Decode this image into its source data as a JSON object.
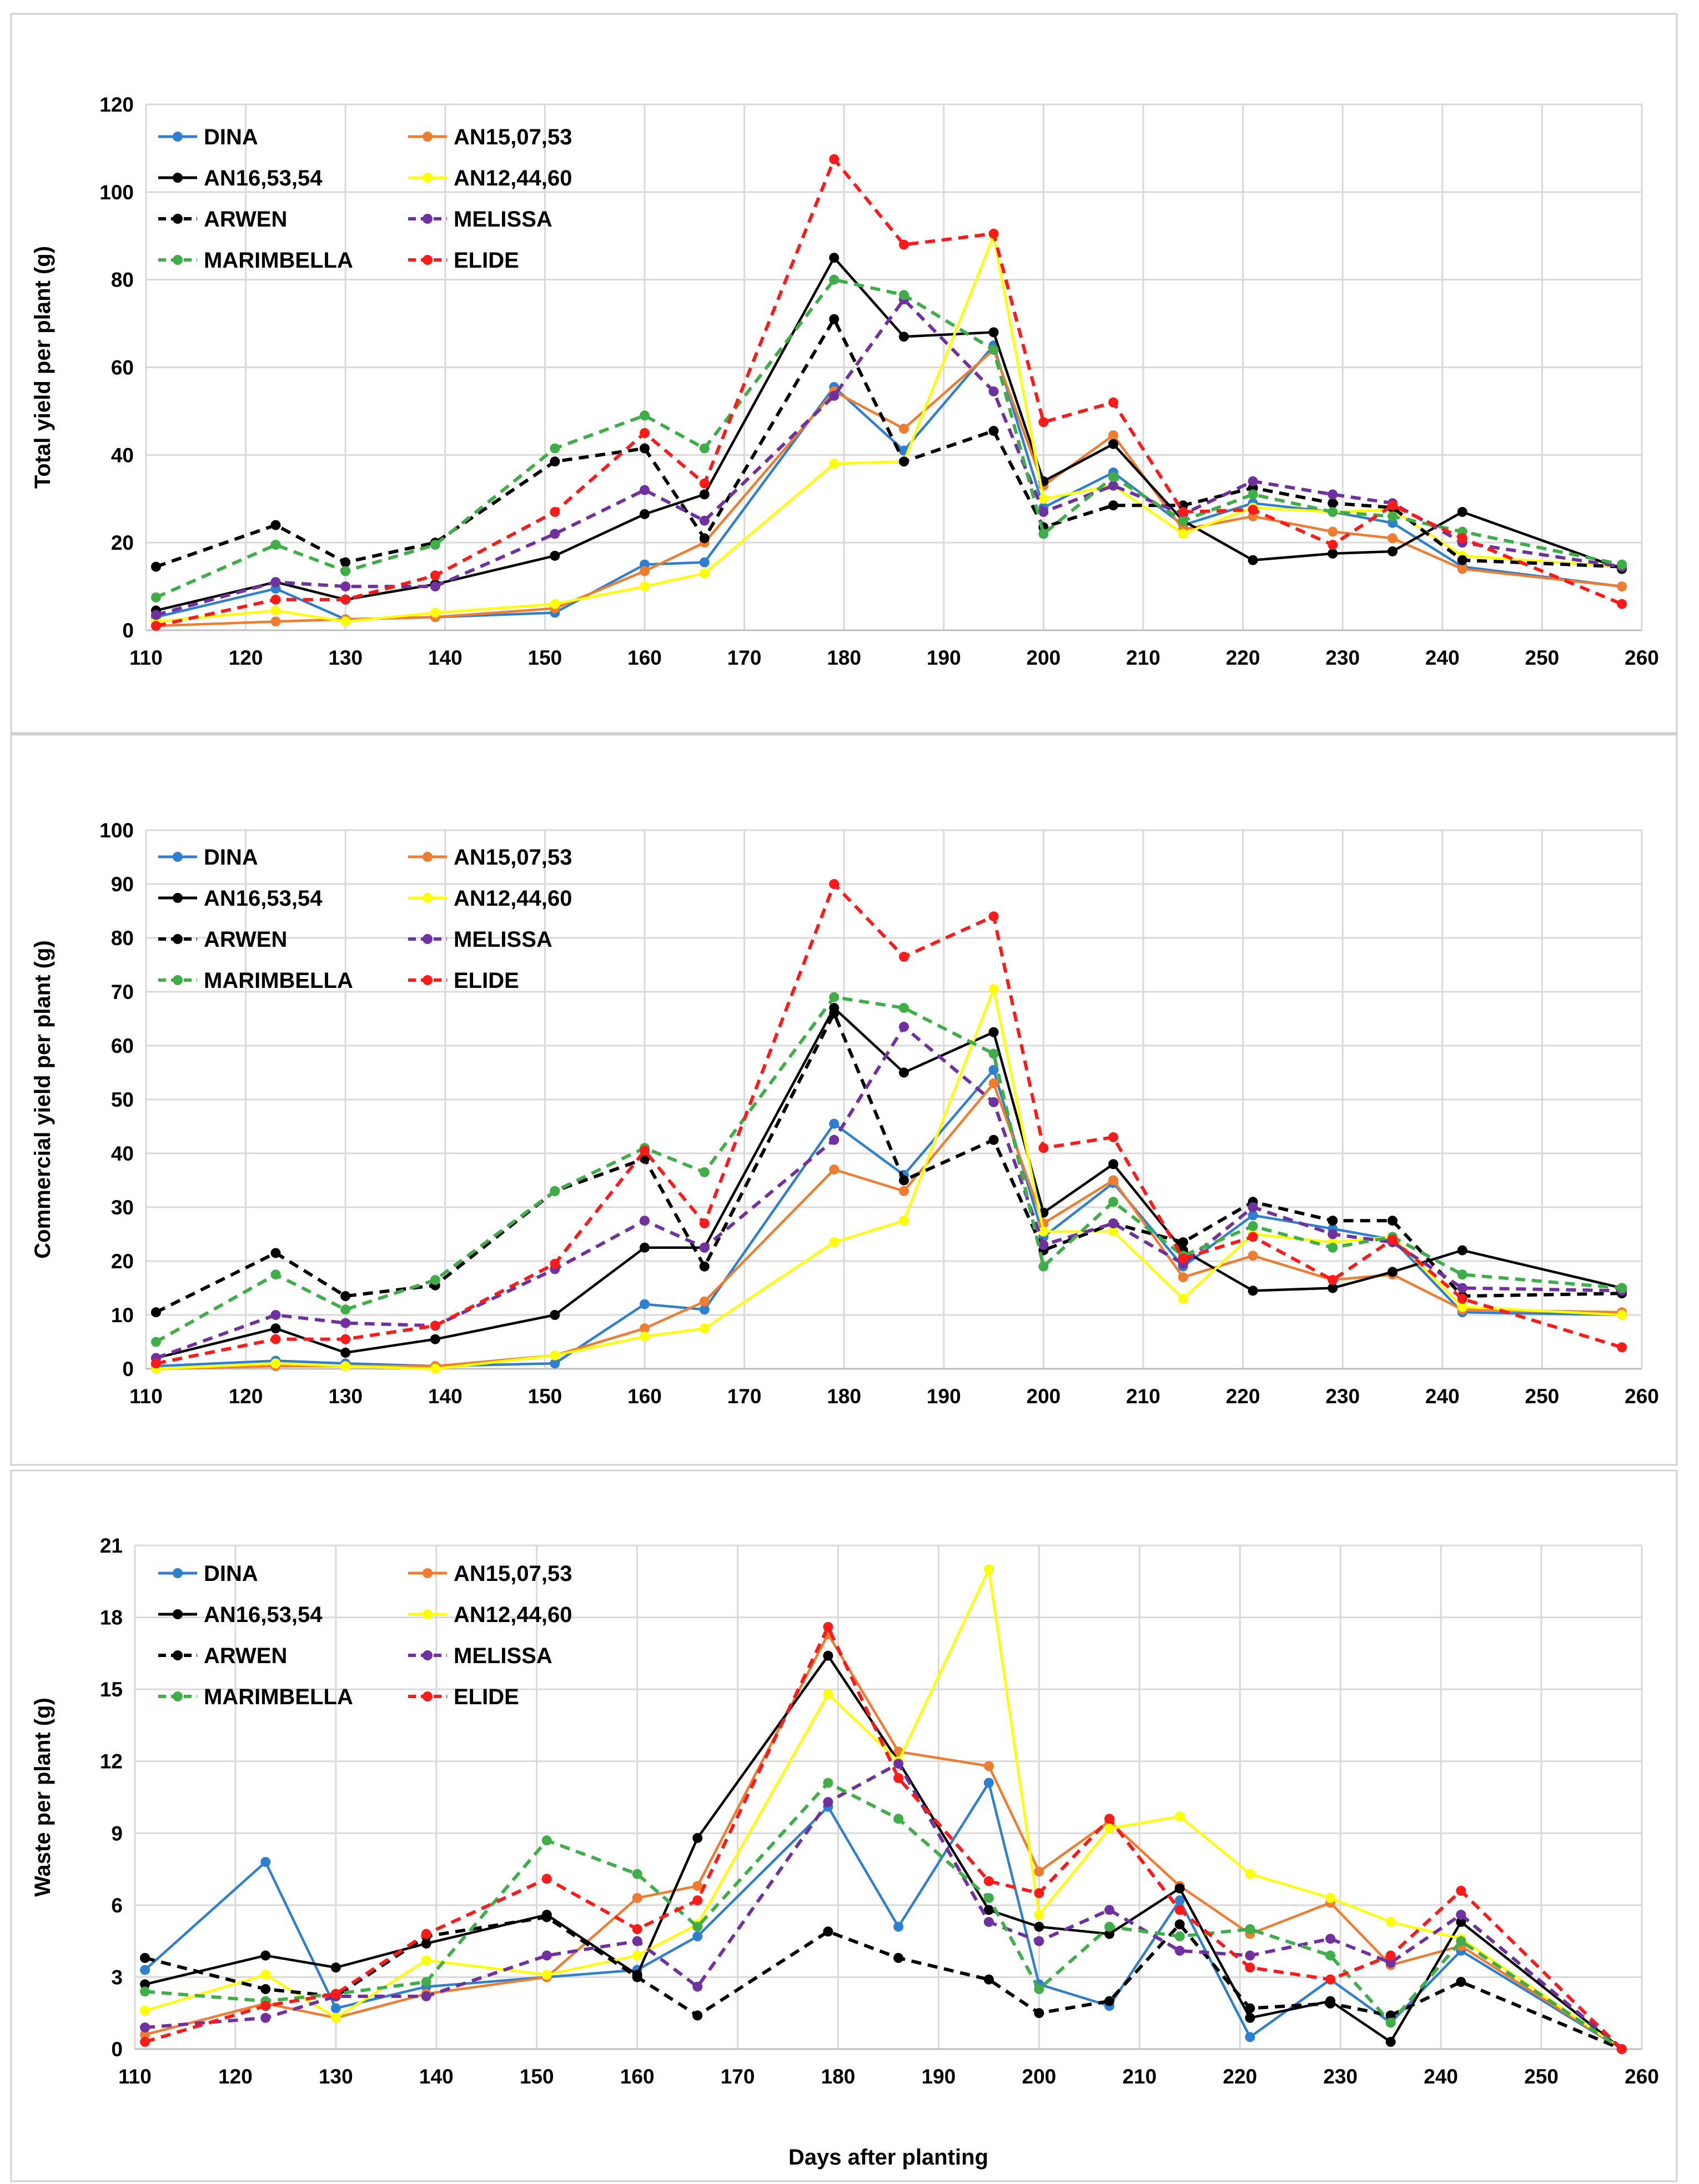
{
  "colors": {
    "DINA": "#2f7fd0",
    "AN15,07,53": "#f07c30",
    "AN16,53,54": "#000000",
    "AN12,44,60": "#ffff00",
    "ARWEN": "#000000",
    "MELISSA": "#7030a0",
    "MARIMBELLA": "#3fae49",
    "ELIDE": "#ff1a1a",
    "grid": "#d9d9d9"
  },
  "xlabel": "Days after planting",
  "chart_data": [
    {
      "type": "line",
      "title": "",
      "ylabel": "Total yield per plant (g)",
      "xlabel": "",
      "xlim": [
        110,
        260
      ],
      "ylim": [
        0,
        120
      ],
      "xticks": [
        110,
        120,
        130,
        140,
        150,
        160,
        170,
        180,
        190,
        200,
        210,
        220,
        230,
        240,
        250,
        260
      ],
      "yticks": [
        0,
        20,
        40,
        60,
        80,
        100,
        120
      ],
      "x": [
        111,
        123,
        130,
        139,
        151,
        160,
        166,
        179,
        186,
        195,
        200,
        207,
        214,
        221,
        229,
        235,
        242,
        258
      ],
      "series": [
        {
          "name": "DINA",
          "dashed": false,
          "values": [
            3,
            9.5,
            2.5,
            3,
            4,
            15,
            15.5,
            55.5,
            41,
            65,
            28,
            36,
            24,
            29,
            27,
            24.5,
            14.5,
            10
          ]
        },
        {
          "name": "AN15,07,53",
          "dashed": false,
          "values": [
            1,
            2,
            2.5,
            3,
            5,
            13.5,
            20,
            54.5,
            46,
            64,
            33,
            44.5,
            23,
            26,
            22.5,
            21,
            14,
            10
          ]
        },
        {
          "name": "AN16,53,54",
          "dashed": false,
          "values": [
            4.5,
            11,
            7,
            10.5,
            17,
            26.5,
            31,
            85,
            67,
            68,
            34,
            42.5,
            25,
            16,
            17.5,
            18,
            27,
            14
          ]
        },
        {
          "name": "AN12,44,60",
          "dashed": false,
          "values": [
            2,
            4.5,
            2,
            4,
            6,
            10,
            13,
            38,
            38.5,
            90,
            30,
            33,
            22,
            28,
            27,
            27.5,
            17,
            14.5
          ]
        },
        {
          "name": "ARWEN",
          "dashed": true,
          "values": [
            14.5,
            24,
            15.5,
            20,
            38.5,
            41.5,
            21,
            71,
            38.5,
            45.5,
            23.5,
            28.5,
            28.5,
            32.5,
            29,
            28,
            16,
            14.5
          ]
        },
        {
          "name": "MELISSA",
          "dashed": true,
          "values": [
            3.5,
            11,
            10,
            10,
            22,
            32,
            25,
            53.5,
            75.5,
            54.5,
            27,
            33,
            26.5,
            34,
            31,
            29,
            20,
            14.5
          ]
        },
        {
          "name": "MARIMBELLA",
          "dashed": true,
          "values": [
            7.5,
            19.5,
            13.5,
            19.5,
            41.5,
            49,
            41.5,
            80,
            76.5,
            64,
            22,
            35,
            25,
            31,
            27,
            26,
            22.5,
            15
          ]
        },
        {
          "name": "ELIDE",
          "dashed": true,
          "values": [
            1,
            7,
            7,
            12.5,
            27,
            45,
            33.5,
            107.5,
            88,
            90.5,
            47.5,
            52,
            27,
            27.5,
            19.5,
            28.5,
            21,
            6
          ]
        }
      ],
      "legend": [
        [
          "DINA",
          "AN15,07,53"
        ],
        [
          "AN16,53,54",
          "AN12,44,60"
        ],
        [
          "ARWEN",
          "MELISSA"
        ],
        [
          "MARIMBELLA",
          "ELIDE"
        ]
      ],
      "ytick_labels": [
        "0",
        "20",
        "40",
        "60",
        "80",
        "100",
        "120"
      ],
      "xtick_labels": [
        "110",
        "120",
        "130",
        "140",
        "150",
        "160",
        "170",
        "180",
        "190",
        "200",
        "210",
        "220",
        "230",
        "240",
        "250",
        "260"
      ]
    },
    {
      "type": "line",
      "title": "",
      "ylabel": "Commercial yield per plant (g)",
      "xlabel": "",
      "xlim": [
        110,
        260
      ],
      "ylim": [
        0,
        100
      ],
      "xticks": [
        110,
        120,
        130,
        140,
        150,
        160,
        170,
        180,
        190,
        200,
        210,
        220,
        230,
        240,
        250,
        260
      ],
      "yticks": [
        0,
        10,
        20,
        30,
        40,
        50,
        60,
        70,
        80,
        90,
        100
      ],
      "x": [
        111,
        123,
        130,
        139,
        151,
        160,
        166,
        179,
        186,
        195,
        200,
        207,
        214,
        221,
        229,
        235,
        242,
        258
      ],
      "series": [
        {
          "name": "DINA",
          "dashed": false,
          "values": [
            0.5,
            1.5,
            1,
            0.5,
            1,
            12,
            11,
            45.5,
            36,
            55.5,
            24.5,
            34.5,
            19,
            28.5,
            26,
            24,
            10.5,
            10
          ]
        },
        {
          "name": "AN15,07,53",
          "dashed": false,
          "values": [
            0,
            0.5,
            0.5,
            0.5,
            2.5,
            7.5,
            12.5,
            37,
            33,
            53,
            27,
            35,
            17,
            21,
            16.5,
            17.5,
            11,
            10.5
          ]
        },
        {
          "name": "AN16,53,54",
          "dashed": false,
          "values": [
            2,
            7.5,
            3,
            5.5,
            10,
            22.5,
            22.5,
            67,
            55,
            62.5,
            29,
            38,
            22,
            14.5,
            15,
            18,
            22,
            15
          ]
        },
        {
          "name": "AN12,44,60",
          "dashed": false,
          "values": [
            0,
            1,
            0.5,
            0,
            2.5,
            6,
            7.5,
            23.5,
            27.5,
            70.5,
            25.5,
            25.5,
            13,
            25,
            23.5,
            24.5,
            11.5,
            10
          ]
        },
        {
          "name": "ARWEN",
          "dashed": true,
          "values": [
            10.5,
            21.5,
            13.5,
            15.5,
            33,
            39,
            19,
            66,
            35,
            42.5,
            22,
            27,
            23.5,
            31,
            27.5,
            27.5,
            13.5,
            14
          ]
        },
        {
          "name": "MELISSA",
          "dashed": true,
          "values": [
            2,
            10,
            8.5,
            8,
            18.5,
            27.5,
            22.5,
            42.5,
            63.5,
            49.5,
            23,
            27,
            19.5,
            30,
            25,
            23.5,
            15,
            14.5
          ]
        },
        {
          "name": "MARIMBELLA",
          "dashed": true,
          "values": [
            5,
            17.5,
            11,
            16.5,
            33,
            41,
            36.5,
            69,
            67,
            58.5,
            19,
            31,
            21,
            26.5,
            22.5,
            24.5,
            17.5,
            15
          ]
        },
        {
          "name": "ELIDE",
          "dashed": true,
          "values": [
            1,
            5.5,
            5.5,
            8,
            19.5,
            40.5,
            27,
            90,
            76.5,
            84,
            41,
            43,
            20.5,
            24.5,
            16.5,
            24,
            13,
            4
          ]
        }
      ],
      "legend": [
        [
          "DINA",
          "AN15,07,53"
        ],
        [
          "AN16,53,54",
          "AN12,44,60"
        ],
        [
          "ARWEN",
          "MELISSA"
        ],
        [
          "MARIMBELLA",
          "ELIDE"
        ]
      ],
      "ytick_labels": [
        "0",
        "10",
        "20",
        "30",
        "40",
        "50",
        "60",
        "70",
        "80",
        "90",
        "100"
      ],
      "xtick_labels": [
        "110",
        "120",
        "130",
        "140",
        "150",
        "160",
        "170",
        "180",
        "190",
        "200",
        "210",
        "220",
        "230",
        "240",
        "250",
        "260"
      ]
    },
    {
      "type": "line",
      "title": "",
      "ylabel": "Waste per plant (g)",
      "xlabel": "Days after planting",
      "xlim": [
        110,
        260
      ],
      "ylim": [
        0,
        21
      ],
      "xticks": [
        110,
        120,
        130,
        140,
        150,
        160,
        170,
        180,
        190,
        200,
        210,
        220,
        230,
        240,
        250,
        260
      ],
      "yticks": [
        0,
        3,
        6,
        9,
        12,
        15,
        18,
        21
      ],
      "x": [
        111,
        123,
        130,
        139,
        151,
        160,
        166,
        179,
        186,
        195,
        200,
        207,
        214,
        221,
        229,
        235,
        242,
        258
      ],
      "series": [
        {
          "name": "DINA",
          "dashed": false,
          "values": [
            3.3,
            7.8,
            1.7,
            2.6,
            3,
            3.3,
            4.7,
            10.1,
            5.1,
            11.1,
            2.7,
            1.8,
            6.2,
            0.5,
            2.9,
            1.1,
            4.1,
            0
          ]
        },
        {
          "name": "AN15,07,53",
          "dashed": false,
          "values": [
            0.6,
            1.9,
            1.3,
            2.3,
            3,
            6.3,
            6.8,
            17.3,
            12.4,
            11.8,
            7.4,
            9.5,
            6.8,
            4.8,
            6.1,
            3.5,
            4.3,
            0
          ]
        },
        {
          "name": "AN16,53,54",
          "dashed": false,
          "values": [
            2.7,
            3.9,
            3.4,
            4.4,
            5.6,
            3.1,
            8.8,
            16.4,
            12,
            5.8,
            5.1,
            4.8,
            6.7,
            1.3,
            2,
            0.3,
            5.3,
            0
          ]
        },
        {
          "name": "AN12,44,60",
          "dashed": false,
          "values": [
            1.6,
            3.1,
            1.3,
            3.7,
            3.1,
            3.9,
            5.2,
            14.8,
            12,
            20,
            5.6,
            9.2,
            9.7,
            7.3,
            6.3,
            5.3,
            4.6,
            0
          ]
        },
        {
          "name": "ARWEN",
          "dashed": true,
          "values": [
            3.8,
            2.5,
            2.2,
            4.7,
            5.5,
            3,
            1.4,
            4.9,
            3.8,
            2.9,
            1.5,
            2,
            5.2,
            1.7,
            1.9,
            1.4,
            2.8,
            0
          ]
        },
        {
          "name": "MELISSA",
          "dashed": true,
          "values": [
            0.9,
            1.3,
            2.2,
            2.2,
            3.9,
            4.5,
            2.6,
            10.3,
            11.9,
            5.3,
            4.5,
            5.8,
            4.1,
            3.9,
            4.6,
            3.6,
            5.6,
            0
          ]
        },
        {
          "name": "MARIMBELLA",
          "dashed": true,
          "values": [
            2.4,
            2,
            2.3,
            2.8,
            8.7,
            7.3,
            5.1,
            11.1,
            9.6,
            6.3,
            2.5,
            5.1,
            4.7,
            5,
            3.9,
            1.1,
            4.5,
            0
          ]
        },
        {
          "name": "ELIDE",
          "dashed": true,
          "values": [
            0.3,
            1.8,
            2.3,
            4.8,
            7.1,
            5,
            6.2,
            17.6,
            11.3,
            7,
            6.5,
            9.6,
            5.8,
            3.4,
            2.9,
            3.9,
            6.6,
            0
          ]
        }
      ],
      "legend": [
        [
          "DINA",
          "AN15,07,53"
        ],
        [
          "AN16,53,54",
          "AN12,44,60"
        ],
        [
          "ARWEN",
          "MELISSA"
        ],
        [
          "MARIMBELLA",
          "ELIDE"
        ]
      ],
      "ytick_labels": [
        "0",
        "3",
        "6",
        "9",
        "12",
        "15",
        "18",
        "21"
      ],
      "xtick_labels": [
        "110",
        "120",
        "130",
        "140",
        "150",
        "160",
        "170",
        "180",
        "190",
        "200",
        "210",
        "220",
        "230",
        "240",
        "250",
        "260"
      ]
    }
  ]
}
